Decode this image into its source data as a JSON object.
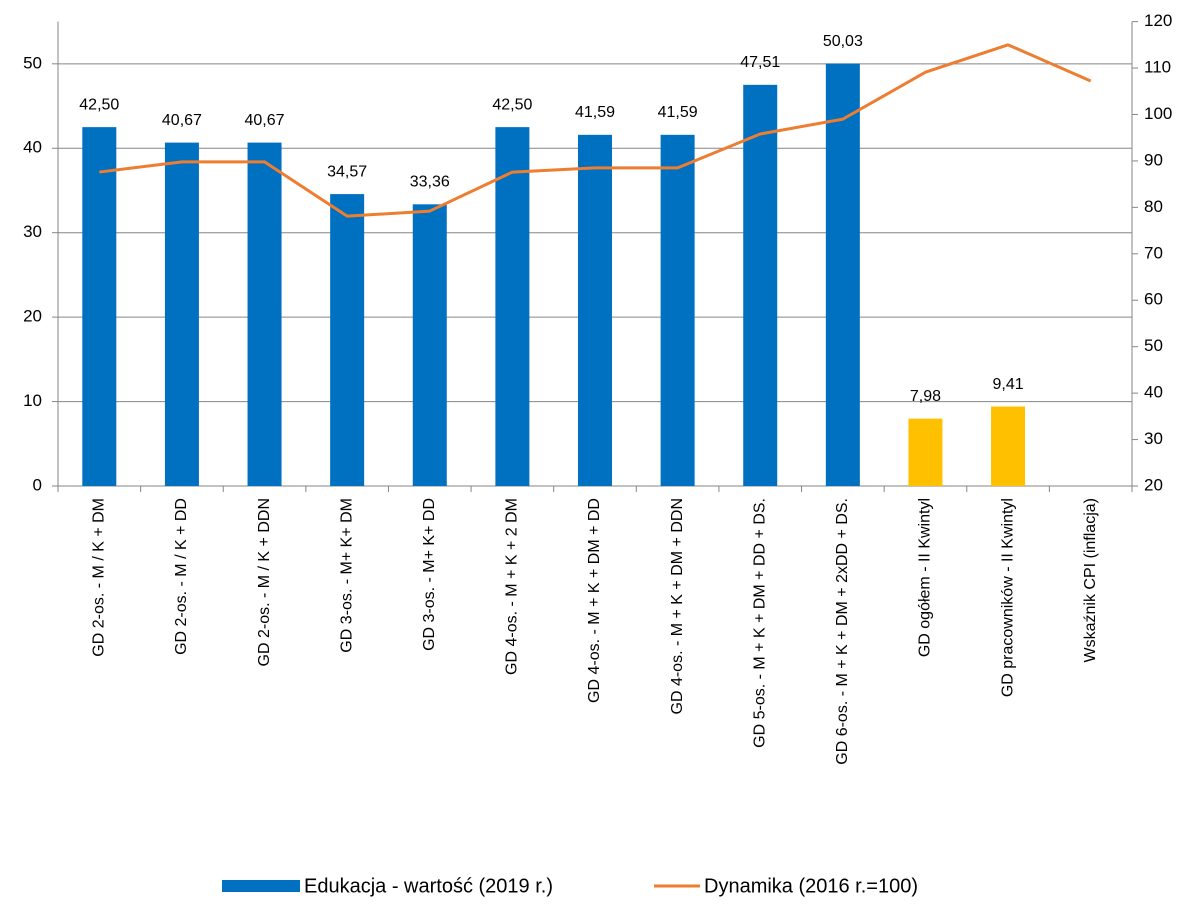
{
  "chart_data": {
    "type": "bar_line",
    "categories": [
      "GD 2-os. - M / K + DM",
      "GD 2-os. - M / K + DD",
      "GD 2-os. - M / K + DDN",
      "GD 3-os. - M+ K+ DM",
      "GD 3-os. - M+ K+ DD",
      "GD 4-os. - M + K + 2 DM",
      "GD 4-os. - M + K + DM + DD",
      "GD 4-os. - M + K + DM + DDN",
      "GD 5-os. - M + K + DM + DD + DS.",
      "GD 6-os. - M + K + DM + 2xDD + DS.",
      "GD ogółem - II Kwintyl",
      "GD pracowników - II Kwintyl",
      "Wskaźnik CPI (inflacja)"
    ],
    "series": [
      {
        "name": "Edukacja - wartość (2019 r.)",
        "type": "bar",
        "color": "#0070c0",
        "colors": [
          "#0070c0",
          "#0070c0",
          "#0070c0",
          "#0070c0",
          "#0070c0",
          "#0070c0",
          "#0070c0",
          "#0070c0",
          "#0070c0",
          "#0070c0",
          "#ffc000",
          "#ffc000",
          null
        ],
        "values": [
          42.5,
          40.67,
          40.67,
          34.57,
          33.36,
          42.5,
          41.59,
          41.59,
          47.51,
          50.03,
          7.98,
          9.41,
          null
        ],
        "value_labels": [
          "42,50",
          "40,67",
          "40,67",
          "34,57",
          "33,36",
          "42,50",
          "41,59",
          "41,59",
          "47,51",
          "50,03",
          "7,98",
          "9,41",
          null
        ]
      },
      {
        "name": "Dynamika (2016 r.=100)",
        "type": "line",
        "axis": "y2",
        "color": "#ed7d31",
        "values": [
          87.6,
          89.8,
          89.8,
          78.1,
          79.2,
          87.6,
          88.5,
          88.5,
          95.8,
          99.0,
          109.1,
          115.0,
          107.2
        ]
      }
    ],
    "ylim": [
      0,
      55
    ],
    "yticks": [
      0,
      10,
      20,
      30,
      40,
      50
    ],
    "y2lim": [
      20,
      120
    ],
    "y2ticks": [
      20,
      30,
      40,
      50,
      60,
      70,
      80,
      90,
      100,
      110,
      120
    ],
    "grid": true,
    "legend": "bottom"
  }
}
